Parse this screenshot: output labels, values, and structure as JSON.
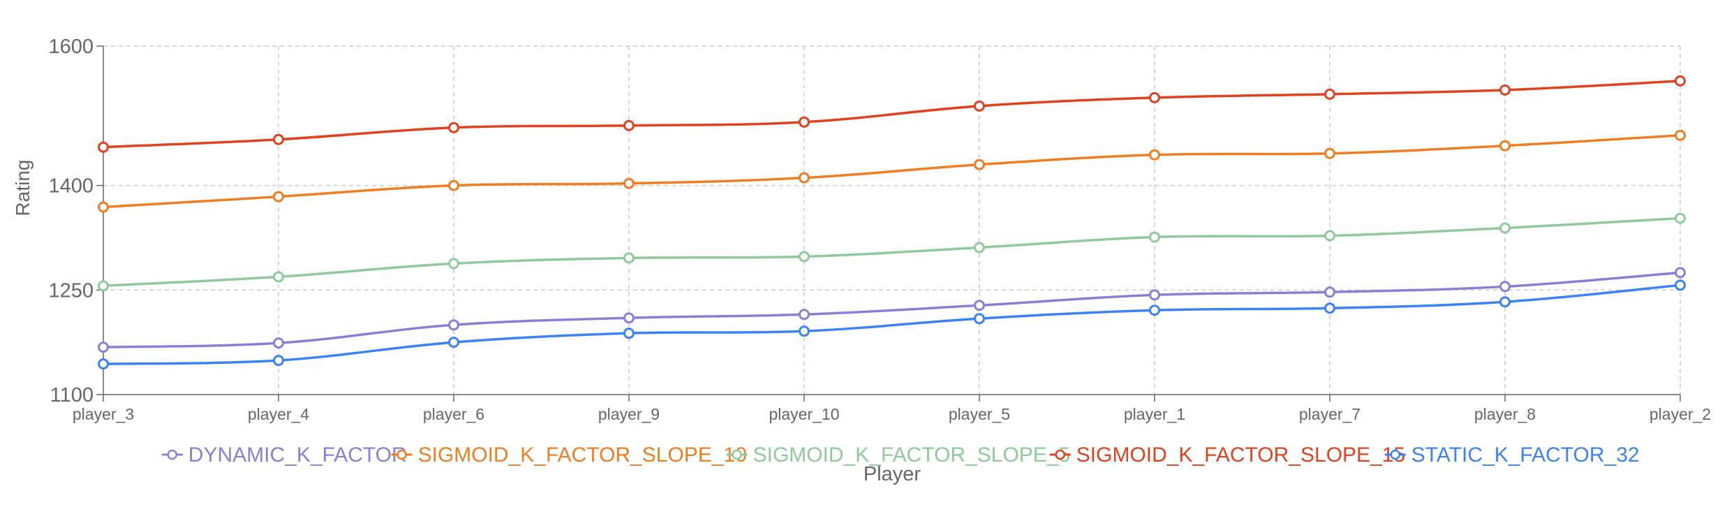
{
  "chart_data": {
    "type": "line",
    "title": "",
    "xlabel": "Player",
    "ylabel": "Rating",
    "categories": [
      "player_3",
      "player_4",
      "player_6",
      "player_9",
      "player_10",
      "player_5",
      "player_1",
      "player_7",
      "player_8",
      "player_2"
    ],
    "ylim": [
      1100,
      1600
    ],
    "yticks": [
      1100,
      1250,
      1400,
      1600
    ],
    "grid": true,
    "legend_position": "bottom",
    "series": [
      {
        "name": "DYNAMIC_K_FACTOR",
        "color": "#8b7fd4",
        "values": [
          1168,
          1174,
          1200,
          1210,
          1215,
          1228,
          1243,
          1247,
          1255,
          1275
        ]
      },
      {
        "name": "SIGMOID_K_FACTOR_SLOPE_10",
        "color": "#ef7d22",
        "values": [
          1369,
          1384,
          1400,
          1403,
          1411,
          1430,
          1444,
          1446,
          1457,
          1472
        ]
      },
      {
        "name": "SIGMOID_K_FACTOR_SLOPE_5",
        "color": "#8fc99c",
        "values": [
          1256,
          1269,
          1288,
          1296,
          1298,
          1311,
          1326,
          1328,
          1339,
          1353
        ]
      },
      {
        "name": "SIGMOID_K_FACTOR_SLOPE_15",
        "color": "#e0411e",
        "values": [
          1455,
          1466,
          1483,
          1486,
          1491,
          1514,
          1526,
          1531,
          1537,
          1550
        ]
      },
      {
        "name": "STATIC_K_FACTOR_32",
        "color": "#3b82f6",
        "values": [
          1144,
          1149,
          1175,
          1188,
          1191,
          1209,
          1221,
          1224,
          1233,
          1257
        ]
      }
    ]
  }
}
